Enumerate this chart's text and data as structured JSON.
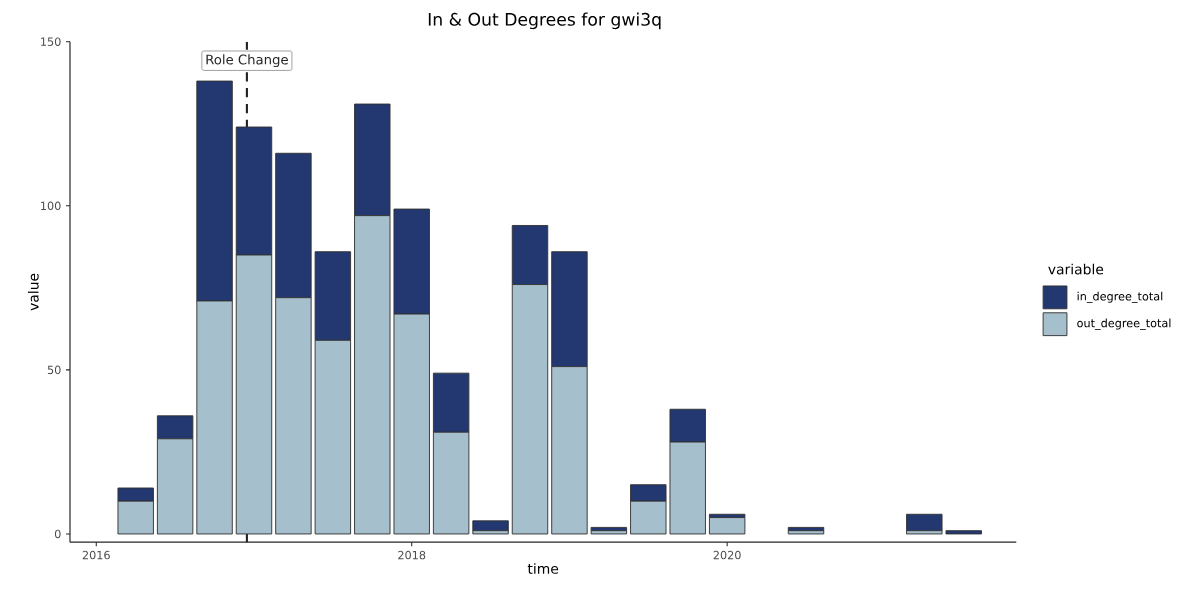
{
  "chart_data": {
    "type": "bar",
    "title": "In & Out Degrees for gwi3q",
    "xlabel": "time",
    "ylabel": "value",
    "legend_title": "variable",
    "stacked": true,
    "x": [
      "2016-04",
      "2016-07",
      "2016-10",
      "2017-01",
      "2017-04",
      "2017-07",
      "2017-10",
      "2018-01",
      "2018-04",
      "2018-07",
      "2018-10",
      "2019-01",
      "2019-04",
      "2019-07",
      "2019-10",
      "2020-01",
      "2020-07",
      "2021-04",
      "2021-07"
    ],
    "series": [
      {
        "name": "out_degree_total",
        "color": "#a6bfcc",
        "values": [
          10,
          29,
          71,
          85,
          72,
          59,
          97,
          67,
          31,
          1,
          76,
          51,
          1,
          10,
          28,
          5,
          1,
          1,
          0
        ]
      },
      {
        "name": "in_degree_total",
        "color": "#233870",
        "values": [
          4,
          7,
          67,
          39,
          44,
          27,
          34,
          32,
          18,
          3,
          18,
          35,
          1,
          5,
          10,
          1,
          1,
          5,
          1
        ]
      }
    ],
    "xlim": [
      "2015-11",
      "2021-11"
    ],
    "xticks": [
      "2016",
      "2018",
      "2020"
    ],
    "ylim": [
      -2.5,
      150
    ],
    "yticks": [
      0,
      50,
      100,
      150
    ],
    "ref_lines": [
      {
        "axis": "x",
        "value": "2016-12-15",
        "label": "Role Change",
        "color": "#222222",
        "line_style": "dashed"
      }
    ],
    "grid": false,
    "legend": "right"
  }
}
